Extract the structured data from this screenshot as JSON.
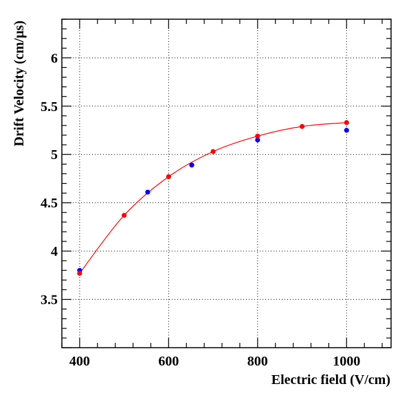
{
  "chart_data": {
    "type": "scatter",
    "title": "",
    "xlabel": "Electric field (V/cm)",
    "ylabel": "Drift Velocity (cm/μs)",
    "xlim": [
      360,
      1100
    ],
    "ylim": [
      3.0,
      6.4
    ],
    "x_ticks": [
      400,
      600,
      800,
      1000
    ],
    "x_tick_labels": [
      "400",
      "600",
      "800",
      "1000"
    ],
    "y_ticks": [
      3.5,
      4,
      4.5,
      5,
      5.5,
      6
    ],
    "y_tick_labels": [
      "3.5",
      "4",
      "4.5",
      "5",
      "5.5",
      "6"
    ],
    "grid": true,
    "legend": "none",
    "series": [
      {
        "color": "#0000ff",
        "marker": "circle",
        "line": false,
        "points": [
          {
            "x": 400,
            "y": 3.8
          },
          {
            "x": 553,
            "y": 4.61
          },
          {
            "x": 652,
            "y": 4.89
          },
          {
            "x": 800,
            "y": 5.15
          },
          {
            "x": 1000,
            "y": 5.25
          }
        ]
      },
      {
        "color": "#ff0000",
        "marker": "circle",
        "line": true,
        "points": [
          {
            "x": 400,
            "y": 3.77
          },
          {
            "x": 500,
            "y": 4.37
          },
          {
            "x": 600,
            "y": 4.77
          },
          {
            "x": 700,
            "y": 5.03
          },
          {
            "x": 800,
            "y": 5.19
          },
          {
            "x": 900,
            "y": 5.29
          },
          {
            "x": 1000,
            "y": 5.33
          }
        ]
      }
    ]
  }
}
